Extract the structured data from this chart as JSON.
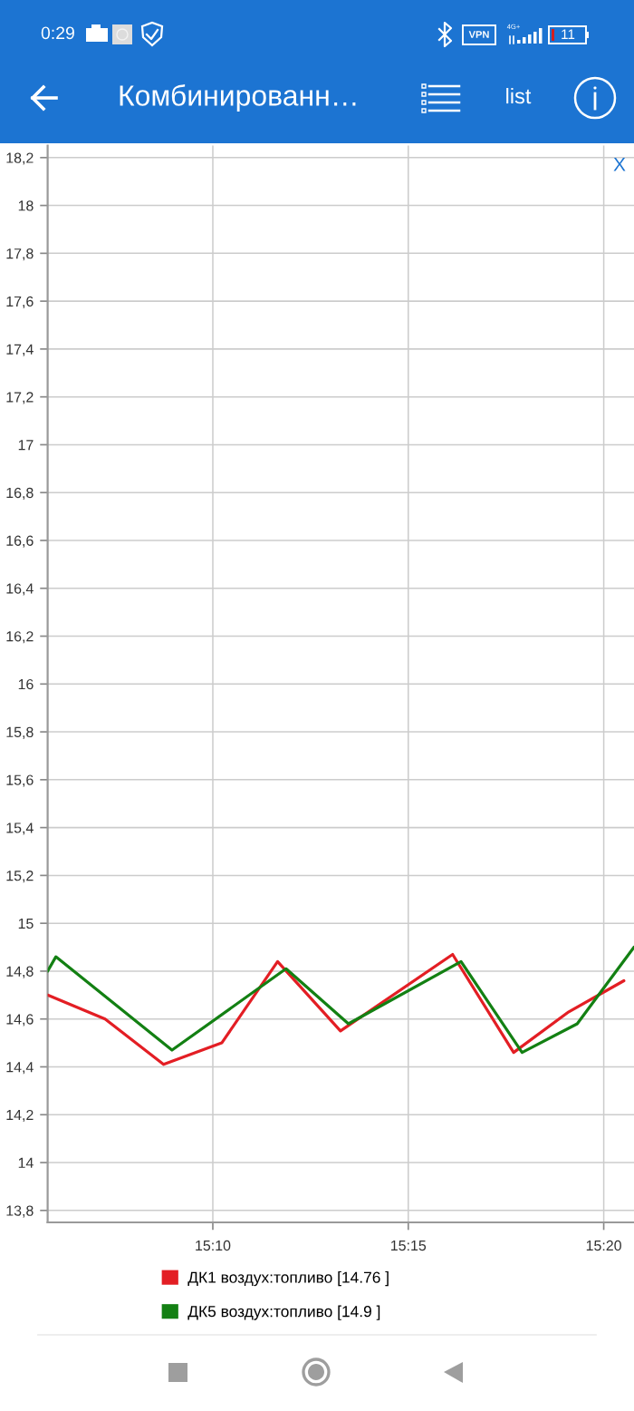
{
  "chart_data": {
    "type": "line",
    "title": "Комбинированн…",
    "annotations": [
      "0:29",
      "VPN",
      "4G+",
      "11",
      "list",
      "X"
    ],
    "xlim": [
      15.0963,
      15.3462
    ],
    "xticks": [
      {
        "value": 15.1667,
        "label": "15:10"
      },
      {
        "value": 15.25,
        "label": "15:15"
      },
      {
        "value": 15.3333,
        "label": "15:20"
      }
    ],
    "ylim": [
      13.75,
      18.25
    ],
    "yticks": [
      {
        "value": 13.8,
        "label": "13,8"
      },
      14,
      {
        "value": 14.2,
        "label": "14,2"
      },
      {
        "value": 14.4,
        "label": "14,4"
      },
      {
        "value": 14.6,
        "label": "14,6"
      },
      {
        "value": 14.8,
        "label": "14,8"
      },
      15,
      {
        "value": 15.2,
        "label": "15,2"
      },
      {
        "value": 15.4,
        "label": "15,4"
      },
      {
        "value": 15.6,
        "label": "15,6"
      },
      {
        "value": 15.8,
        "label": "15,8"
      },
      16,
      {
        "value": 16.2,
        "label": "16,2"
      },
      {
        "value": 16.4,
        "label": "16,4"
      },
      {
        "value": 16.6,
        "label": "16,6"
      },
      {
        "value": 16.8,
        "label": "16,8"
      },
      17,
      {
        "value": 17.2,
        "label": "17,2"
      },
      {
        "value": 17.4,
        "label": "17,4"
      },
      {
        "value": 17.6,
        "label": "17,6"
      },
      {
        "value": 17.8,
        "label": "17,8"
      },
      18,
      {
        "value": 18.2,
        "label": "18,2"
      }
    ],
    "grid": true,
    "legend": "bottom",
    "series": [
      {
        "name": "ДК1 воздух:топливо [14.76 ]",
        "color": "#e31e24",
        "x": [
          15.0963,
          15.1208,
          15.1457,
          15.1705,
          15.1943,
          15.2211,
          15.2689,
          15.2949,
          15.3184,
          15.3419
        ],
        "values": [
          14.7,
          14.6,
          14.41,
          14.5,
          14.84,
          14.55,
          14.87,
          14.46,
          14.63,
          14.76
        ]
      },
      {
        "name": "ДК5 воздух:топливо [14.9 ]",
        "color": "#138013",
        "x": [
          15.0963,
          15.0998,
          15.1493,
          15.1979,
          15.2245,
          15.2725,
          15.2985,
          15.322,
          15.3462
        ],
        "values": [
          14.8,
          14.86,
          14.47,
          14.81,
          14.58,
          14.84,
          14.46,
          14.58,
          14.9
        ]
      }
    ]
  }
}
